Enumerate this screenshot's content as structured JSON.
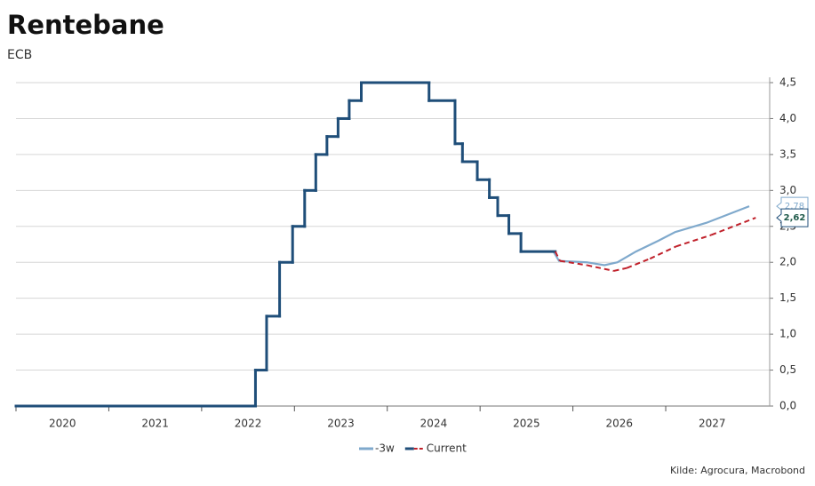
{
  "chart_data": {
    "type": "line",
    "title": "Rentebane",
    "subtitle": "ECB",
    "source": "Kilde: Agrocura, Macrobond",
    "xlim": [
      2020,
      2028.12
    ],
    "xticks": [
      2020,
      2021,
      2022,
      2023,
      2024,
      2025,
      2026,
      2027
    ],
    "ylim": [
      0,
      4.5
    ],
    "yticks": [
      {
        "value": 0,
        "label": "0,0"
      },
      {
        "value": 0.5,
        "label": "0,5"
      },
      {
        "value": 1,
        "label": "1,0"
      },
      {
        "value": 1.5,
        "label": "1,5"
      },
      {
        "value": 2,
        "label": "2,0"
      },
      {
        "value": 2.5,
        "label": "2,5"
      },
      {
        "value": 3,
        "label": "3,0"
      },
      {
        "value": 3.5,
        "label": "3,5"
      },
      {
        "value": 4,
        "label": "4,0"
      },
      {
        "value": 4.5,
        "label": "4,5"
      }
    ],
    "grid": true,
    "series": [
      {
        "name": "-3w",
        "color": "#7fa9cc",
        "end_label": "2,78",
        "x": [
          2025.79,
          2025.85,
          2026.15,
          2026.34,
          2026.48,
          2026.68,
          2026.92,
          2027.1,
          2027.44,
          2027.9
        ],
        "values": [
          2.15,
          2.02,
          2.0,
          1.96,
          2.0,
          2.15,
          2.3,
          2.42,
          2.55,
          2.78
        ]
      },
      {
        "name": "Current",
        "color": "#1f4e79",
        "forecast_color": "#c0202a",
        "forecast_start": 2025.81,
        "end_label": "2,62",
        "x": [
          2020,
          2022.58,
          2022.58,
          2022.7,
          2022.7,
          2022.84,
          2022.84,
          2022.98,
          2022.98,
          2023.11,
          2023.11,
          2023.23,
          2023.23,
          2023.35,
          2023.35,
          2023.47,
          2023.47,
          2023.59,
          2023.59,
          2023.72,
          2023.72,
          2024.45,
          2024.45,
          2024.73,
          2024.73,
          2024.81,
          2024.81,
          2024.97,
          2024.97,
          2025.1,
          2025.1,
          2025.19,
          2025.19,
          2025.31,
          2025.31,
          2025.44,
          2025.44,
          2025.81,
          2025.86,
          2026.15,
          2026.44,
          2026.58,
          2026.83,
          2027.11,
          2027.49,
          2027.97
        ],
        "values": [
          0,
          0,
          0.5,
          0.5,
          1.25,
          1.25,
          2,
          2,
          2.5,
          2.5,
          3,
          3,
          3.5,
          3.5,
          3.75,
          3.75,
          4,
          4,
          4.25,
          4.25,
          4.5,
          4.5,
          4.25,
          4.25,
          3.65,
          3.65,
          3.4,
          3.4,
          3.15,
          3.15,
          2.9,
          2.9,
          2.65,
          2.65,
          2.4,
          2.4,
          2.15,
          2.15,
          2.02,
          1.96,
          1.88,
          1.92,
          2.05,
          2.22,
          2.38,
          2.62
        ]
      }
    ]
  }
}
